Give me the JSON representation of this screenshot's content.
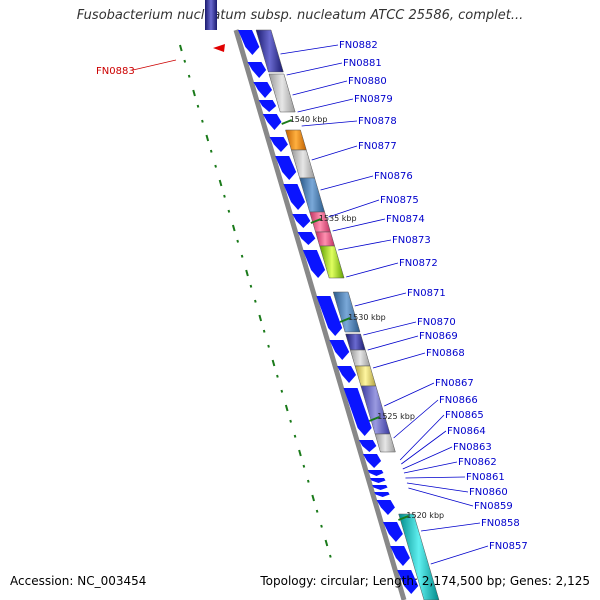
{
  "title": "Fusobacterium nucleatum subsp. nucleatum ATCC 25586, complet...",
  "footer": {
    "accession": "Accession: NC_003454",
    "topology": "Topology: circular; Length: 2,174,500 bp; Genes: 2,125"
  },
  "kbp_markers": [
    "1540 kbp",
    "1535 kbp",
    "1530 kbp",
    "1525 kbp",
    "1520 kbp"
  ],
  "genes": [
    {
      "label": "FN0882",
      "color": "#2222aa"
    },
    {
      "label": "FN0881",
      "color": "#2222aa"
    },
    {
      "label": "FN0880",
      "color": "#2222aa"
    },
    {
      "label": "FN0879",
      "color": "#2222aa"
    },
    {
      "label": "FN0878",
      "color": "#2222aa"
    },
    {
      "label": "FN0877",
      "color": "#2222aa"
    },
    {
      "label": "FN0876",
      "color": "#2222aa"
    },
    {
      "label": "FN0875",
      "color": "#2222aa"
    },
    {
      "label": "FN0874",
      "color": "#2222aa"
    },
    {
      "label": "FN0873",
      "color": "#2222aa"
    },
    {
      "label": "FN0872",
      "color": "#2222aa"
    },
    {
      "label": "FN0871",
      "color": "#2222aa"
    },
    {
      "label": "FN0870",
      "color": "#2222aa"
    },
    {
      "label": "FN0869",
      "color": "#2222aa"
    },
    {
      "label": "FN0868",
      "color": "#2222aa"
    },
    {
      "label": "FN0867",
      "color": "#2222aa"
    },
    {
      "label": "FN0866",
      "color": "#2222aa"
    },
    {
      "label": "FN0865",
      "color": "#2222aa"
    },
    {
      "label": "FN0864",
      "color": "#2222aa"
    },
    {
      "label": "FN0863",
      "color": "#2222aa"
    },
    {
      "label": "FN0862",
      "color": "#2222aa"
    },
    {
      "label": "FN0861",
      "color": "#2222aa"
    },
    {
      "label": "FN0860",
      "color": "#2222aa"
    },
    {
      "label": "FN0859",
      "color": "#2222aa"
    },
    {
      "label": "FN0858",
      "color": "#2222aa"
    },
    {
      "label": "FN0857",
      "color": "#2222aa"
    },
    {
      "label": "FN0883",
      "color": "#cc0000"
    }
  ],
  "colors": {
    "forward_gene": "#0a14ff",
    "reverse_marker": "#e00000",
    "backbone": "#888888",
    "gc_skew_dash": "#1a7a1a"
  }
}
